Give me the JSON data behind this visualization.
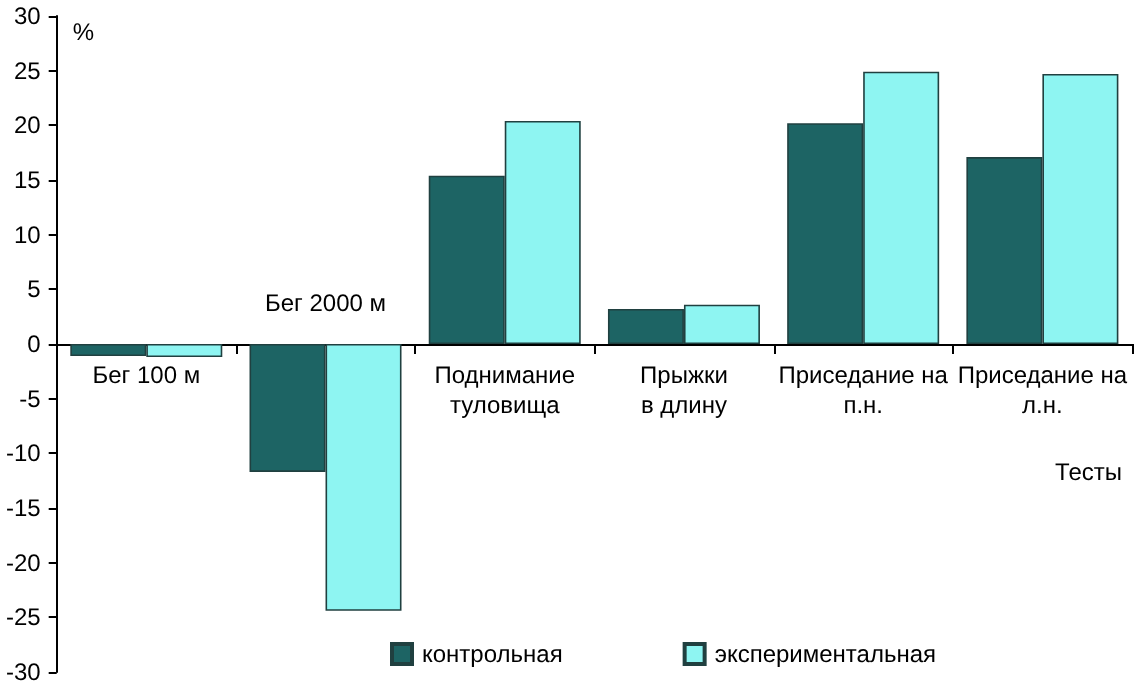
{
  "chart_data": {
    "type": "bar",
    "ylabel": "%",
    "xlabel": "Тесты",
    "categories": [
      "Бег 100 м",
      "Бег 2000 м",
      "Поднимание\nтуловища",
      "Прыжки\nв длину",
      "Приседание на\nп.н.",
      "Приседание на\nл.н."
    ],
    "series": [
      {
        "name": "контрольная",
        "color": "#1d6464",
        "values": [
          -1.1,
          -11.7,
          15.4,
          3.2,
          20.2,
          17.1
        ]
      },
      {
        "name": "экспериментальная",
        "color": "#8ef5f2",
        "values": [
          -1.2,
          -24.4,
          20.4,
          3.6,
          24.9,
          24.7
        ]
      }
    ],
    "ylim": [
      -30,
      30
    ],
    "yticks": [
      -30,
      -25,
      -20,
      -15,
      -10,
      -5,
      0,
      5,
      10,
      15,
      20,
      25,
      30
    ],
    "grid": false,
    "legend": "bottom"
  }
}
